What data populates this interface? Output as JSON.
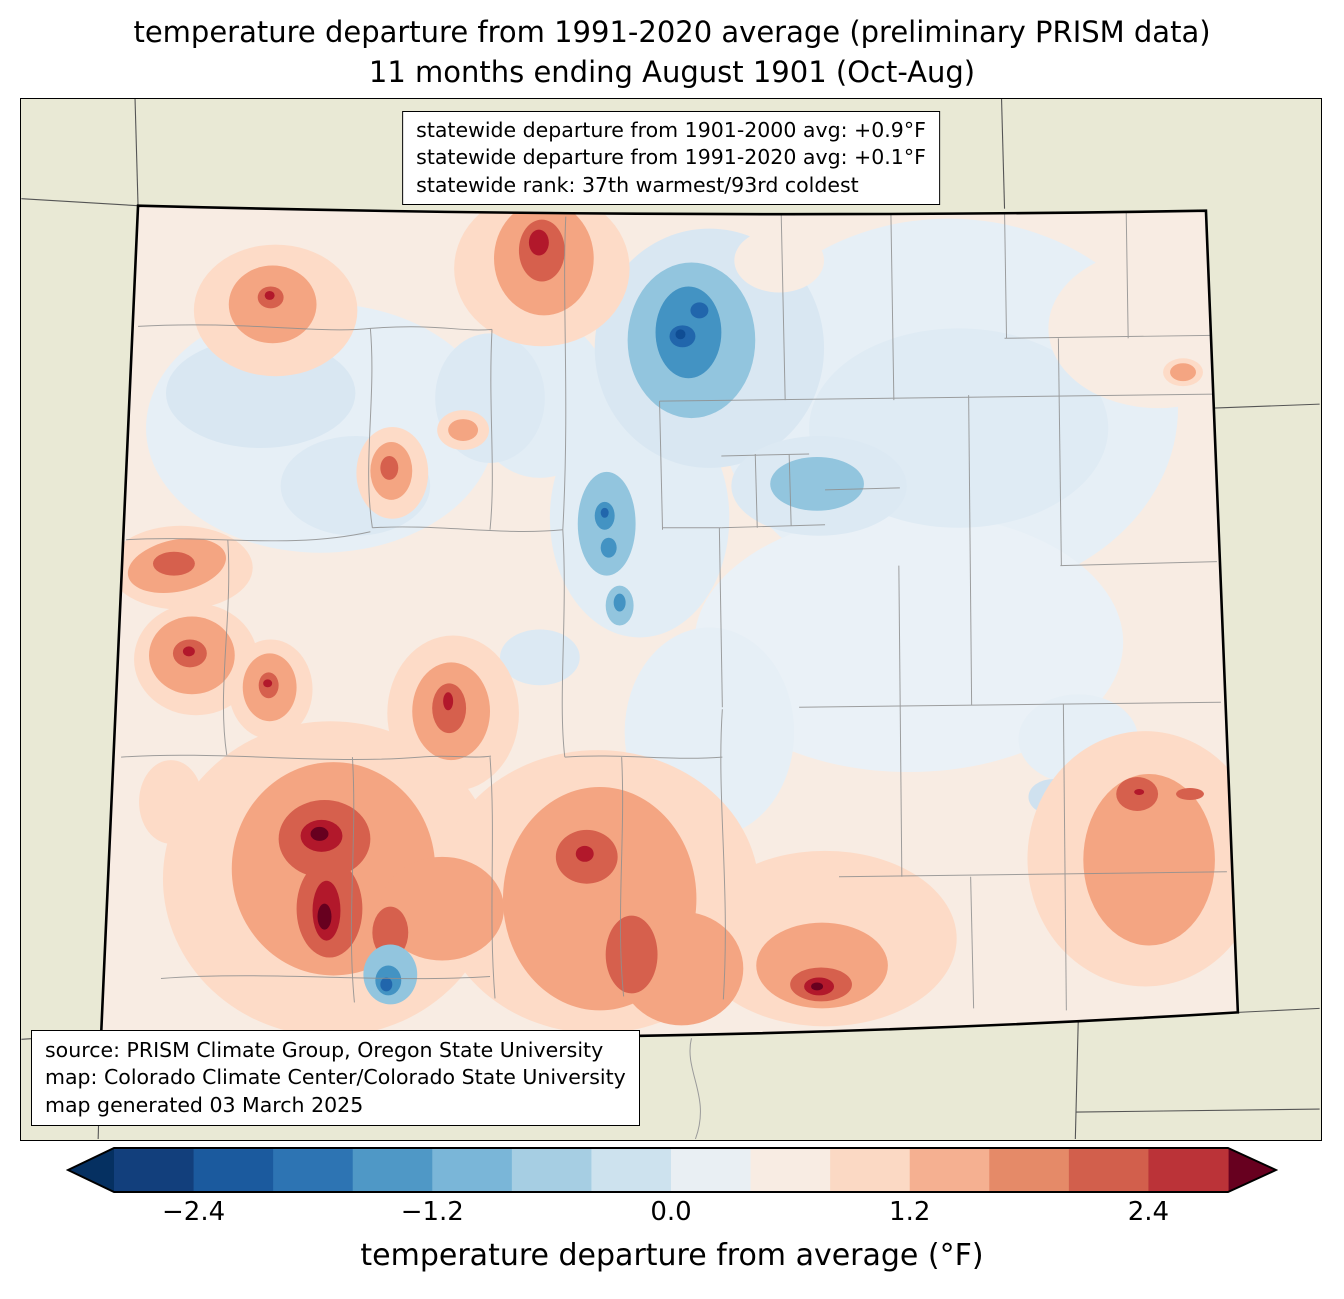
{
  "title": {
    "line1": "temperature departure from 1991-2020 average (preliminary PRISM data)",
    "line2": "11 months ending August 1901 (Oct-Aug)"
  },
  "stats_box": {
    "lines": [
      "statewide departure from 1901-2000 avg: +0.9°F",
      "statewide departure from 1991-2020 avg: +0.1°F",
      "statewide rank: 37th warmest/93rd coldest"
    ]
  },
  "source_box": {
    "lines": [
      "source: PRISM Climate Group, Oregon State University",
      "map: Colorado Climate Center/Colorado State University",
      "map generated 03 March 2025"
    ]
  },
  "colorbar": {
    "label": "temperature departure from average (°F)",
    "range_min": -2.8,
    "range_max": 2.8,
    "ticks": [
      {
        "value": -2.4,
        "label": "−2.4"
      },
      {
        "value": -1.2,
        "label": "−1.2"
      },
      {
        "value": 0.0,
        "label": "0.0"
      },
      {
        "value": 1.2,
        "label": "1.2"
      },
      {
        "value": 2.4,
        "label": "2.4"
      }
    ],
    "segment_colors": [
      "#123f7c",
      "#1b5a9e",
      "#2d74b3",
      "#4f98c6",
      "#7ab6d8",
      "#a6cee3",
      "#cde2ee",
      "#e9eff3",
      "#f8ece3",
      "#fbd9c4",
      "#f5b091",
      "#e58a68",
      "#d25f4c",
      "#bb3338"
    ],
    "under_color": "#053061",
    "over_color": "#67001f"
  },
  "map": {
    "region_label": "Colorado",
    "outside_fill": "#e9e9d5",
    "state_base_fill": "#f8ece3"
  }
}
